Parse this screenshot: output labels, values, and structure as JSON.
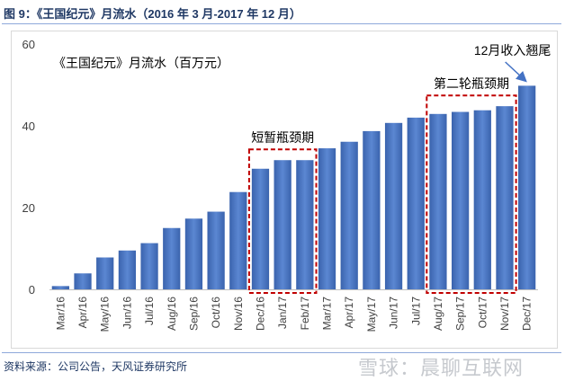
{
  "figure_title": "图 9：《王国纪元》月流水（2016 年 3 月-2017 年 12 月）",
  "source": "资料来源：公司公告，天风证券研究所",
  "watermark": "雪球：晨聊互联网",
  "colors": {
    "bar": "#4472c4",
    "box": "#c00000",
    "title": "#1f3864",
    "axis_text": "#404040",
    "grid": "#d9d9d9",
    "arrow": "#4472c4"
  },
  "chart_data": {
    "type": "bar",
    "title": "《王国纪元》月流水（百万元）",
    "categories": [
      "Mar/16",
      "Apr/16",
      "May/16",
      "Jun/16",
      "Jul/16",
      "Aug/16",
      "Sep/16",
      "Oct/16",
      "Nov/16",
      "Dec/16",
      "Jan/17",
      "Feb/17",
      "Mar/17",
      "Apr/17",
      "May/17",
      "Jun/17",
      "Jul/17",
      "Aug/17",
      "Sep/17",
      "Oct/17",
      "Nov/17",
      "Dec/17"
    ],
    "values": [
      0.8,
      3.9,
      7.8,
      9.5,
      11.3,
      15.0,
      17.3,
      19.0,
      23.8,
      29.5,
      31.6,
      31.6,
      34.5,
      36.1,
      38.7,
      40.7,
      42.0,
      42.9,
      43.4,
      43.8,
      44.8,
      49.8
    ],
    "ylim": [
      0,
      60
    ],
    "yticks": [
      0,
      20,
      40,
      60
    ],
    "grid": false,
    "annotations": [
      {
        "text": "短暂瓶颈期",
        "range": [
          "Dec/16",
          "Feb/17"
        ]
      },
      {
        "text": "第二轮瓶颈期",
        "range": [
          "Aug/17",
          "Nov/17"
        ]
      },
      {
        "text": "12月收入翘尾",
        "target": "Dec/17"
      }
    ]
  }
}
